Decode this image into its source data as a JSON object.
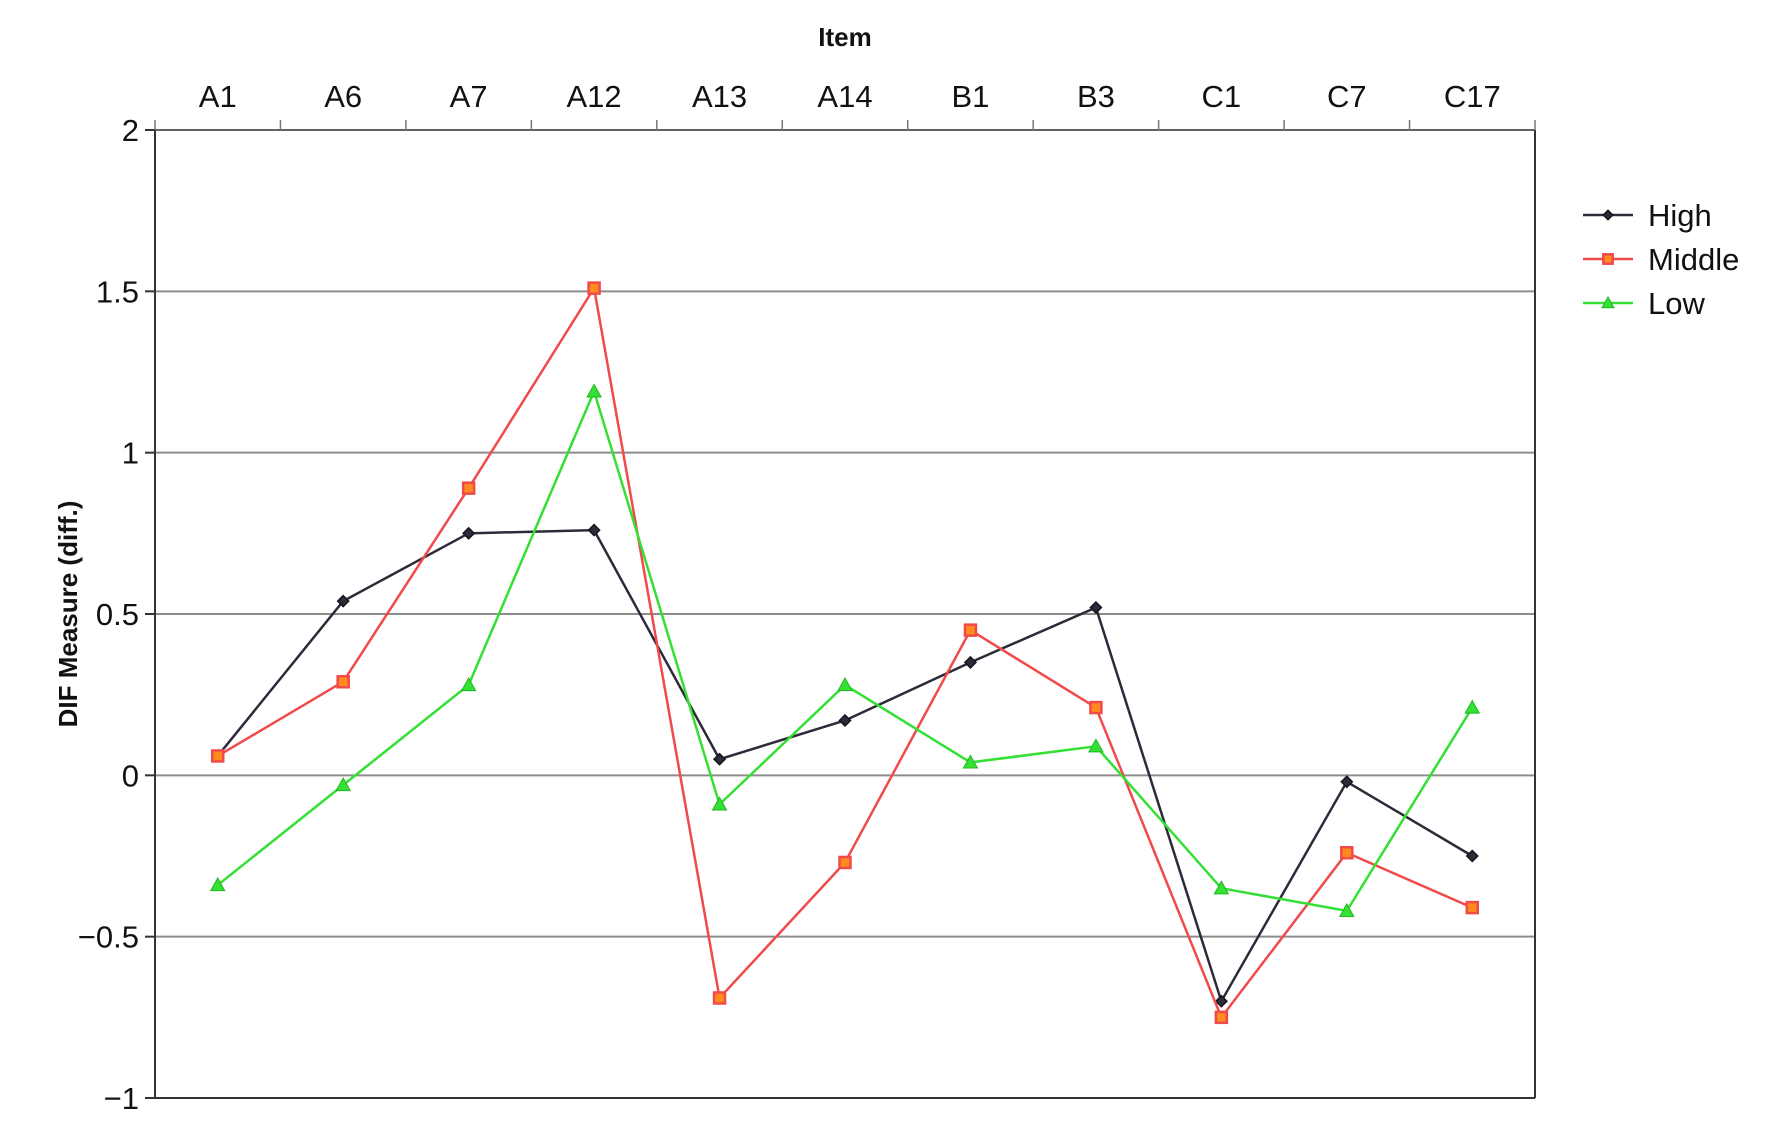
{
  "chart_data": {
    "type": "line",
    "title": "",
    "xlabel": "Item",
    "ylabel": "DIF Measure (diff.)",
    "x_axis_position": "top",
    "categories": [
      "A1",
      "A6",
      "A7",
      "A12",
      "A13",
      "A14",
      "B1",
      "B3",
      "C1",
      "C7",
      "C17"
    ],
    "ylim": [
      -1,
      2
    ],
    "y_ticks": [
      {
        "value": 2,
        "label": "2"
      },
      {
        "value": 1.5,
        "label": "1.5"
      },
      {
        "value": 1,
        "label": "1"
      },
      {
        "value": 0.5,
        "label": "0.5"
      },
      {
        "value": 0,
        "label": "0"
      },
      {
        "value": -0.5,
        "label": "−0.5"
      },
      {
        "value": -1,
        "label": "−1"
      }
    ],
    "grid": true,
    "legend": "right",
    "series": [
      {
        "name": "High",
        "color": "#2b2b3a",
        "marker": "diamond",
        "values": [
          0.06,
          0.54,
          0.75,
          0.76,
          0.05,
          0.17,
          0.35,
          0.52,
          -0.7,
          -0.02,
          -0.25
        ]
      },
      {
        "name": "Middle",
        "color": "#f04a4a",
        "marker": "square",
        "values": [
          0.06,
          0.29,
          0.89,
          1.51,
          -0.69,
          -0.27,
          0.45,
          0.21,
          -0.75,
          -0.24,
          -0.41
        ]
      },
      {
        "name": "Low",
        "color": "#33e033",
        "marker": "triangle",
        "values": [
          -0.34,
          -0.03,
          0.28,
          1.19,
          -0.09,
          0.28,
          0.04,
          0.09,
          -0.35,
          -0.42,
          0.21
        ]
      }
    ]
  }
}
